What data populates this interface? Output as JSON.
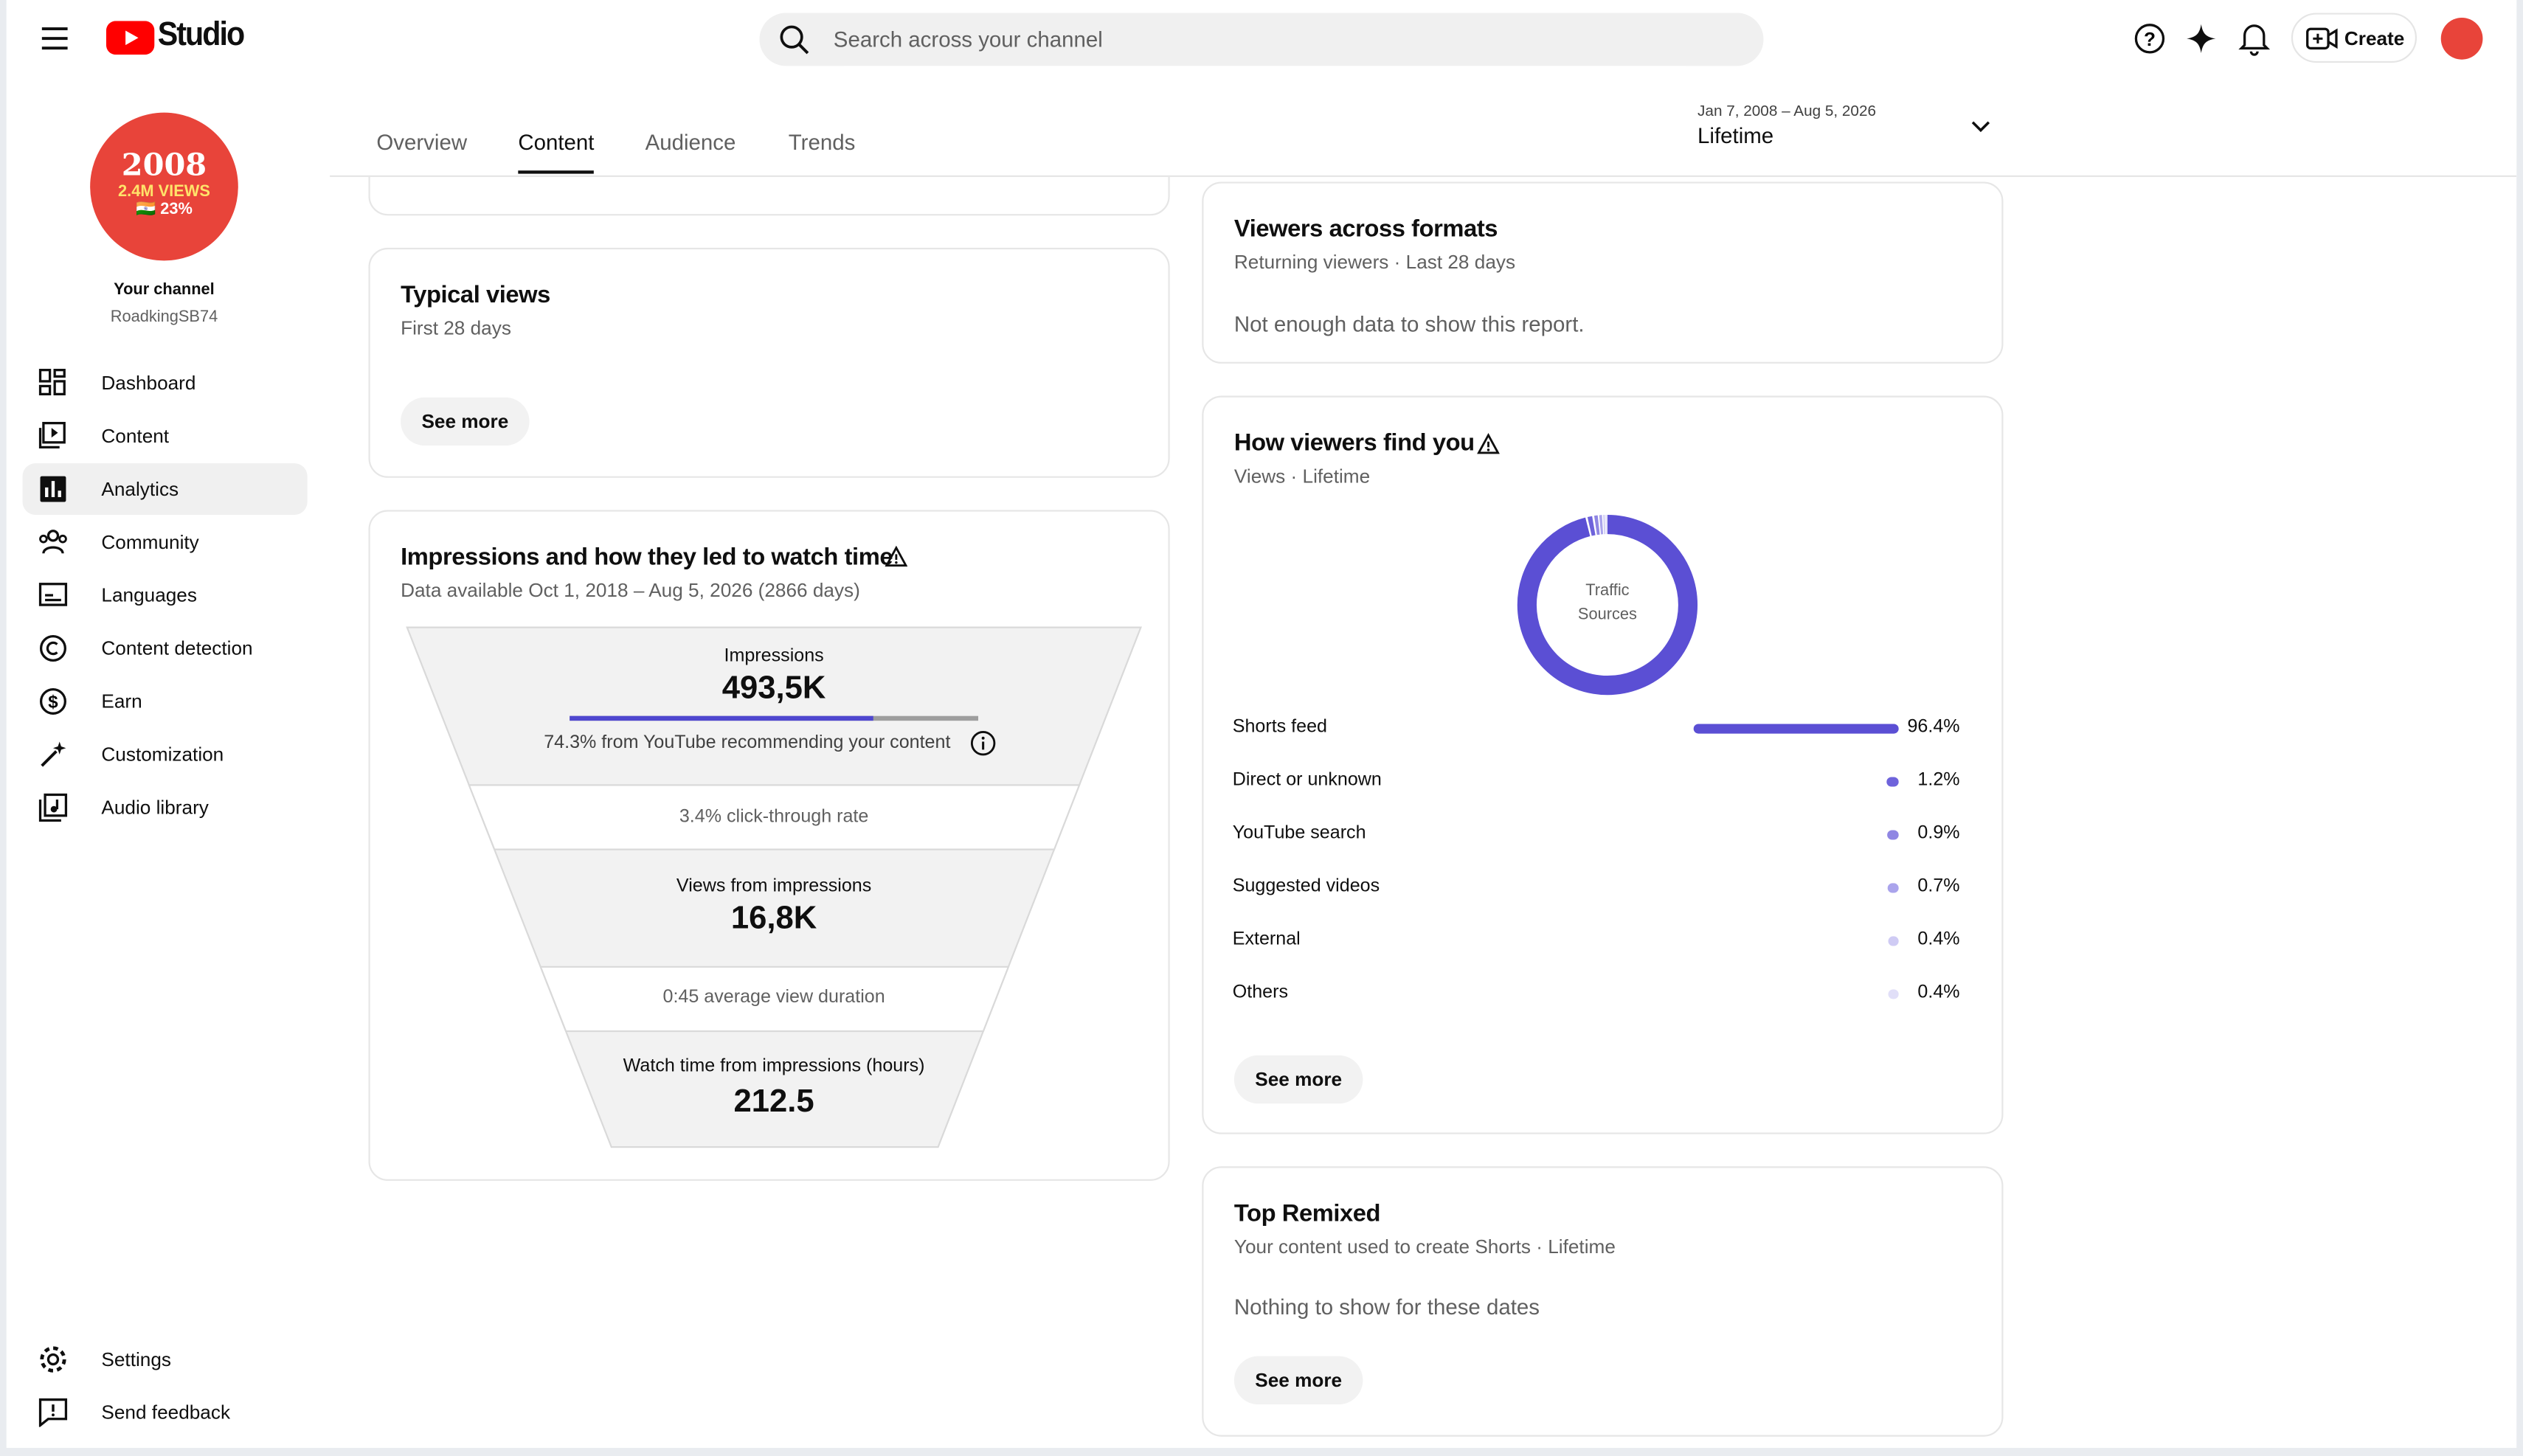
{
  "header": {
    "logo_text": "Studio",
    "search_placeholder": "Search across your channel",
    "create": "Create"
  },
  "sidebar": {
    "avatar_lines": [
      "2008",
      "2.4M VIEWS",
      "🇮🇳 23%"
    ],
    "channel_label": "Your channel",
    "channel_name": "RoadkingSB74",
    "nav": [
      "Dashboard",
      "Content",
      "Analytics",
      "Community",
      "Languages",
      "Content detection",
      "Earn",
      "Customization",
      "Audio library"
    ],
    "active_nav": 2,
    "bottom": [
      "Settings",
      "Send feedback"
    ]
  },
  "tabs": {
    "items": [
      "Overview",
      "Content",
      "Audience",
      "Trends"
    ],
    "active": 1
  },
  "date_range": {
    "range": "Jan 7, 2008 – Aug 5, 2026",
    "label": "Lifetime"
  },
  "typical_views": {
    "title": "Typical views",
    "subtitle": "First 28 days",
    "button": "See more"
  },
  "impressions": {
    "title": "Impressions and how they led to watch time",
    "subtitle": "Data available Oct 1, 2018 – Aug 5, 2026 (2866 days)",
    "impressions_label": "Impressions",
    "impressions_value": "493,5K",
    "recommended_share": 74.3,
    "recommended_text": "74.3% from YouTube recommending your content",
    "ctr": "3.4% click-through rate",
    "views_label": "Views from impressions",
    "views_value": "16,8K",
    "avd": "0:45 average view duration",
    "watch_label": "Watch time from impressions (hours)",
    "watch_value": "212.5"
  },
  "viewers_formats": {
    "title": "Viewers across formats",
    "subtitle": "Returning viewers · Last 28 days",
    "message": "Not enough data to show this report."
  },
  "traffic": {
    "title": "How viewers find you",
    "subtitle": "Views · Lifetime",
    "center": "Traffic Sources",
    "button": "See more",
    "sources": [
      {
        "name": "Shorts feed",
        "value": 96.4,
        "value_label": "96.4%",
        "color": "#5b4fd4"
      },
      {
        "name": "Direct or unknown",
        "value": 1.2,
        "value_label": "1.2%",
        "color": "#6e63db"
      },
      {
        "name": "YouTube search",
        "value": 0.9,
        "value_label": "0.9%",
        "color": "#8f86e3"
      },
      {
        "name": "Suggested videos",
        "value": 0.7,
        "value_label": "0.7%",
        "color": "#aaa4ec"
      },
      {
        "name": "External",
        "value": 0.4,
        "value_label": "0.4%",
        "color": "#cfcbf4"
      },
      {
        "name": "Others",
        "value": 0.4,
        "value_label": "0.4%",
        "color": "#e1dff8"
      }
    ]
  },
  "top_remixed": {
    "title": "Top Remixed",
    "subtitle": "Your content used to create Shorts · Lifetime",
    "message": "Nothing to show for these dates",
    "button": "See more"
  }
}
